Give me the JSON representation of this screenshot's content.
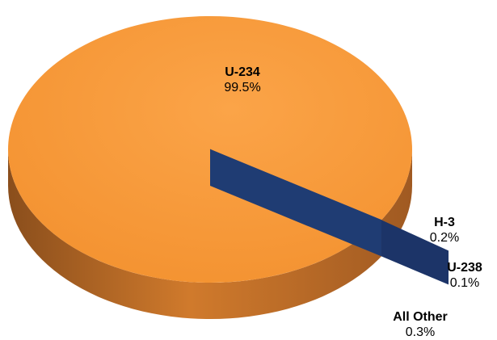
{
  "chart_data": {
    "type": "pie",
    "style": "3d",
    "slices": [
      {
        "name": "U-234",
        "value": 99.5,
        "label": "99.5%",
        "color": "#f79a3c"
      },
      {
        "name": "H-3",
        "value": 0.2,
        "label": "0.2%",
        "color": "#4f8f4a"
      },
      {
        "name": "U-238",
        "value": 0.1,
        "label": "0.1%",
        "color": "#b23a3a"
      },
      {
        "name": "All Other",
        "value": 0.3,
        "label": "0.3%",
        "color": "#1f3c73"
      }
    ],
    "title": "",
    "legend": "none"
  }
}
